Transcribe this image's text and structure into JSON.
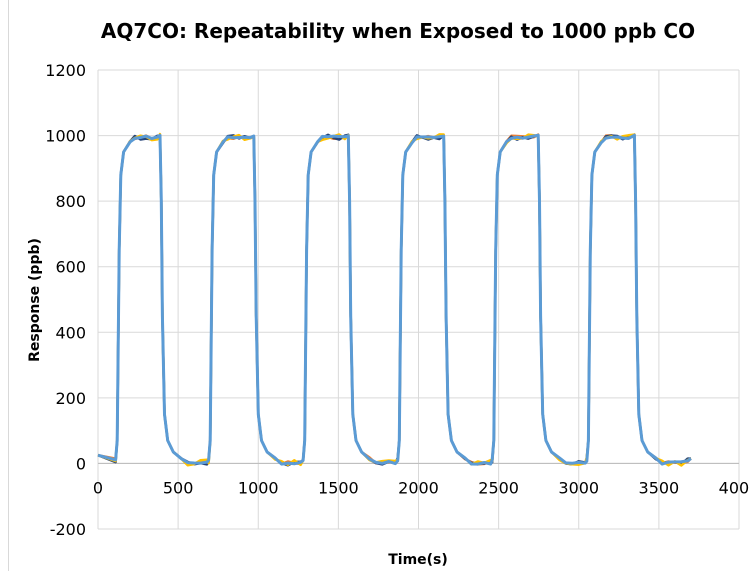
{
  "chart_data": {
    "type": "line",
    "title": "AQ7CO: Repeatability when Exposed to 1000 ppb CO",
    "xlabel": "Time(s)",
    "ylabel": "Response (ppb)",
    "xlim": [
      0,
      4000
    ],
    "ylim": [
      -200,
      1200
    ],
    "xticks": [
      0,
      500,
      1000,
      1500,
      2000,
      2500,
      3000,
      3500,
      4000
    ],
    "yticks": [
      -200,
      0,
      200,
      400,
      600,
      800,
      1000,
      1200
    ],
    "grid": true,
    "legend": "none",
    "baseline": 10,
    "plateau": 1000,
    "pulses": [
      {
        "on": 120,
        "off": 390
      },
      {
        "on": 700,
        "off": 975
      },
      {
        "on": 1290,
        "off": 1565
      },
      {
        "on": 1880,
        "off": 2160
      },
      {
        "on": 2470,
        "off": 2750
      },
      {
        "on": 3060,
        "off": 3350
      }
    ],
    "x_end": 3700,
    "series": [
      {
        "color": "#ed7d31",
        "noise": 6
      },
      {
        "color": "#264478",
        "noise": 8
      },
      {
        "color": "#ffc000",
        "noise": 10
      },
      {
        "color": "#5b9bd5",
        "noise": 4
      }
    ]
  }
}
